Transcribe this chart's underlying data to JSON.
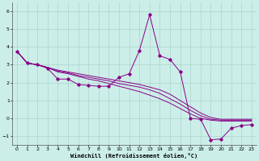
{
  "xlabel": "Windchill (Refroidissement éolien,°C)",
  "background_color": "#cceee8",
  "grid_color": "#aad4ce",
  "line_color": "#880088",
  "xlim": [
    -0.5,
    23.5
  ],
  "ylim": [
    -1.5,
    6.5
  ],
  "yticks": [
    -1,
    0,
    1,
    2,
    3,
    4,
    5,
    6
  ],
  "xticks": [
    0,
    1,
    2,
    3,
    4,
    5,
    6,
    7,
    8,
    9,
    10,
    11,
    12,
    13,
    14,
    15,
    16,
    17,
    18,
    19,
    20,
    21,
    22,
    23
  ],
  "y_main": [
    3.75,
    3.1,
    3.0,
    2.8,
    2.2,
    2.2,
    1.9,
    1.85,
    1.8,
    1.8,
    2.3,
    2.5,
    3.8,
    5.8,
    3.5,
    3.3,
    2.6,
    0.0,
    -0.05,
    -1.2,
    -1.15,
    -0.55,
    -0.4,
    -0.35
  ],
  "y_line1": [
    3.75,
    3.1,
    3.0,
    2.85,
    2.7,
    2.6,
    2.5,
    2.4,
    2.3,
    2.2,
    2.1,
    2.0,
    1.9,
    1.75,
    1.6,
    1.35,
    1.0,
    0.65,
    0.3,
    0.05,
    -0.05,
    -0.05,
    -0.05,
    -0.05
  ],
  "y_line2": [
    3.75,
    3.1,
    3.0,
    2.85,
    2.65,
    2.55,
    2.4,
    2.3,
    2.2,
    2.1,
    1.95,
    1.85,
    1.75,
    1.6,
    1.4,
    1.1,
    0.8,
    0.45,
    0.15,
    -0.05,
    -0.1,
    -0.1,
    -0.1,
    -0.1
  ],
  "y_line3": [
    3.75,
    3.1,
    3.0,
    2.85,
    2.6,
    2.5,
    2.35,
    2.2,
    2.1,
    1.95,
    1.8,
    1.65,
    1.5,
    1.3,
    1.1,
    0.85,
    0.55,
    0.25,
    0.0,
    -0.1,
    -0.15,
    -0.15,
    -0.15,
    -0.15
  ]
}
